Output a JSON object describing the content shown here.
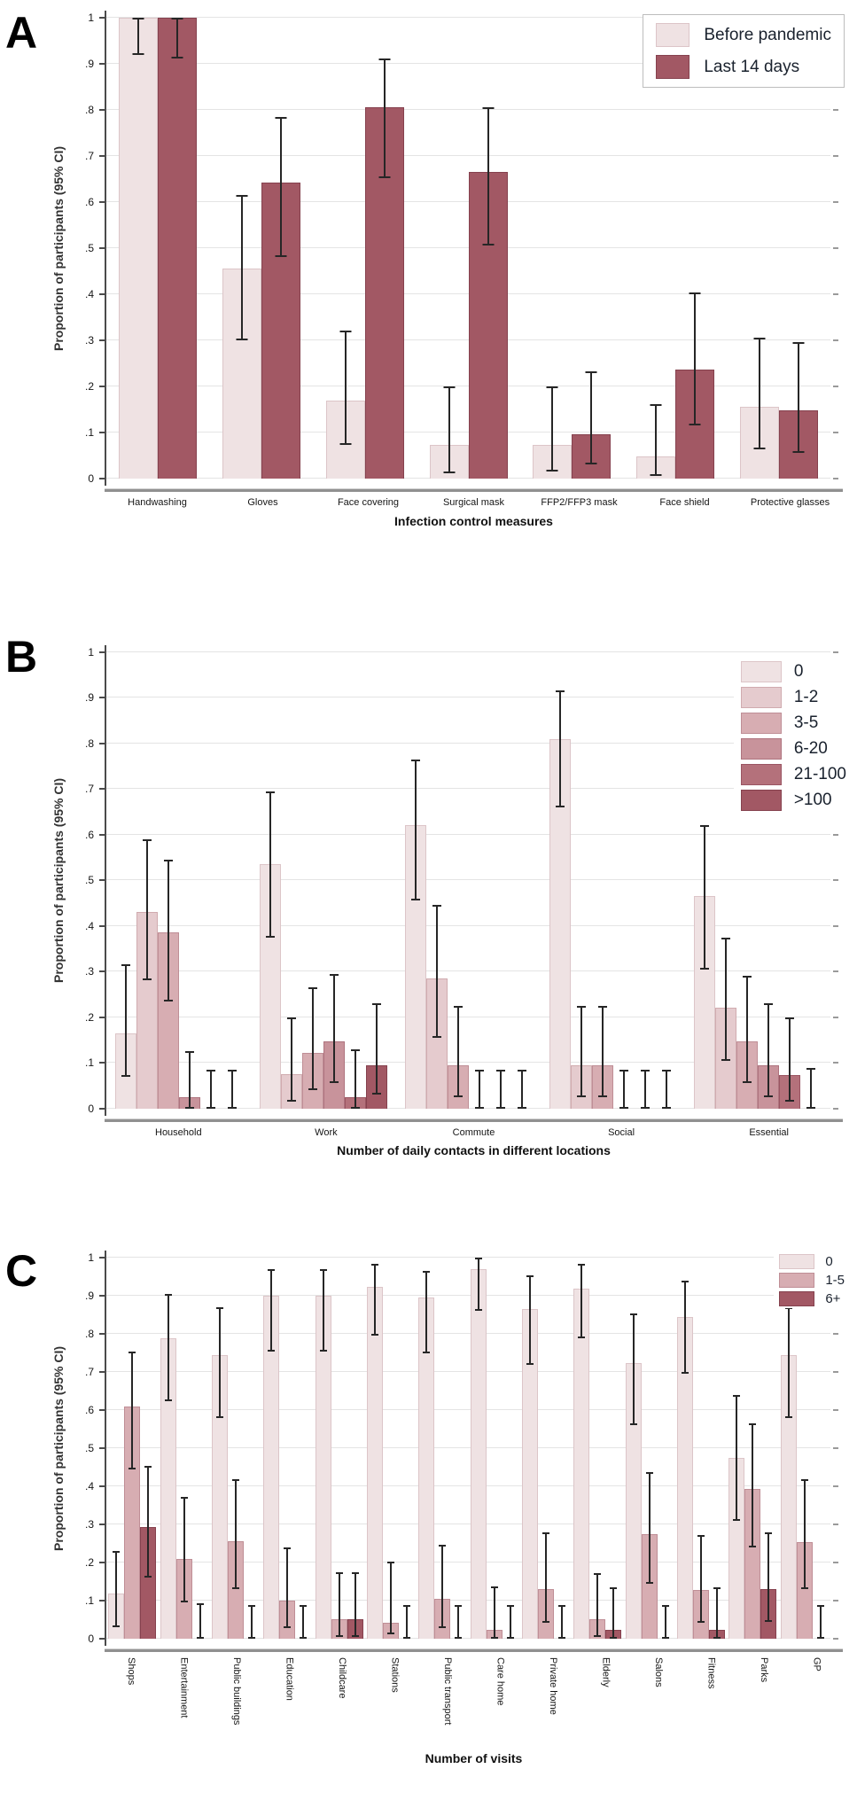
{
  "figure": {
    "panels": [
      "A",
      "B",
      "C"
    ],
    "error_bar_color": "#262626",
    "grid_color": "#e4e4e4",
    "background": "#ffffff"
  },
  "chart_data": [
    {
      "type": "bar",
      "panel": "A",
      "title": "",
      "xlabel": "Infection control measures",
      "ylabel": "Proportion of participants (95% CI)",
      "ylim": [
        0,
        1
      ],
      "ytick_labels": [
        "0",
        ".1",
        ".2",
        ".3",
        ".4",
        ".5",
        ".6",
        ".7",
        ".8",
        ".9",
        "1"
      ],
      "grid": true,
      "legend_position": "top-right",
      "categories": [
        "Handwashing",
        "Gloves",
        "Face covering",
        "Surgical mask",
        "FFP2/FFP3 mask",
        "Face shield",
        "Protective glasses"
      ],
      "series": [
        {
          "name": "Before pandemic",
          "color": "#efe2e3",
          "border": "#dcc5c8",
          "values": [
            1.0,
            0.455,
            0.17,
            0.073,
            0.073,
            0.048,
            0.155
          ],
          "ci_low": [
            0.92,
            0.3,
            0.073,
            0.012,
            0.015,
            0.005,
            0.063
          ],
          "ci_high": [
            1.0,
            0.615,
            0.322,
            0.2,
            0.2,
            0.162,
            0.305
          ]
        },
        {
          "name": "Last 14 days",
          "color": "#a25864",
          "border": "#85414e",
          "values": [
            1.0,
            0.643,
            0.805,
            0.665,
            0.097,
            0.237,
            0.148
          ],
          "ci_low": [
            0.912,
            0.48,
            0.652,
            0.505,
            0.03,
            0.115,
            0.055
          ],
          "ci_high": [
            1.0,
            0.785,
            0.912,
            0.805,
            0.232,
            0.403,
            0.297
          ]
        }
      ]
    },
    {
      "type": "bar",
      "panel": "B",
      "title": "",
      "xlabel": "Number of daily contacts in different locations",
      "ylabel": "Proportion of participants (95% CI)",
      "ylim": [
        0,
        1
      ],
      "ytick_labels": [
        "0",
        ".1",
        ".2",
        ".3",
        ".4",
        ".5",
        ".6",
        ".7",
        ".8",
        ".9",
        "1"
      ],
      "grid": true,
      "legend_position": "top-right",
      "categories": [
        "Household",
        "Work",
        "Commute",
        "Social",
        "Essential"
      ],
      "series": [
        {
          "name": "0",
          "color": "#efe2e3",
          "border": "#dcc5c8",
          "values": [
            0.165,
            0.535,
            0.62,
            0.81,
            0.465
          ],
          "ci_low": [
            0.07,
            0.375,
            0.455,
            0.66,
            0.305
          ],
          "ci_high": [
            0.315,
            0.695,
            0.765,
            0.915,
            0.62
          ]
        },
        {
          "name": "1-2",
          "color": "#e5cbce",
          "border": "#d0abaf",
          "values": [
            0.43,
            0.075,
            0.285,
            0.095,
            0.22
          ],
          "ci_low": [
            0.28,
            0.015,
            0.155,
            0.025,
            0.105
          ],
          "ci_high": [
            0.59,
            0.2,
            0.445,
            0.225,
            0.375
          ]
        },
        {
          "name": "3-5",
          "color": "#d7adb2",
          "border": "#bf8e96",
          "values": [
            0.385,
            0.122,
            0.095,
            0.095,
            0.147
          ],
          "ci_low": [
            0.235,
            0.04,
            0.025,
            0.025,
            0.055
          ],
          "ci_high": [
            0.545,
            0.265,
            0.225,
            0.225,
            0.29
          ]
        },
        {
          "name": "6-20",
          "color": "#c8939b",
          "border": "#ae737e",
          "values": [
            0.024,
            0.147,
            0.0,
            0.0,
            0.095
          ],
          "ci_low": [
            0.0,
            0.055,
            0.0,
            0.0,
            0.025
          ],
          "ci_high": [
            0.125,
            0.295,
            0.085,
            0.085,
            0.23
          ]
        },
        {
          "name": "21-100",
          "color": "#b4717b",
          "border": "#9a5562",
          "values": [
            0.0,
            0.024,
            0.0,
            0.0,
            0.073
          ],
          "ci_low": [
            0.0,
            0.0,
            0.0,
            0.0,
            0.015
          ],
          "ci_high": [
            0.085,
            0.13,
            0.085,
            0.085,
            0.2
          ]
        },
        {
          "name": ">100",
          "color": "#a25864",
          "border": "#85414e",
          "values": [
            0.0,
            0.095,
            0.0,
            0.0,
            0.0
          ],
          "ci_low": [
            0.0,
            0.03,
            0.0,
            0.0,
            0.0
          ],
          "ci_high": [
            0.085,
            0.23,
            0.085,
            0.085,
            0.088
          ]
        }
      ]
    },
    {
      "type": "bar",
      "panel": "C",
      "title": "",
      "xlabel": "Number of visits",
      "ylabel": "Proportion of participants (95% CI)",
      "ylim": [
        0,
        1
      ],
      "ytick_labels": [
        "0",
        ".1",
        ".2",
        ".3",
        ".4",
        ".5",
        ".6",
        ".7",
        ".8",
        ".9",
        "1"
      ],
      "grid": true,
      "legend_position": "top-right",
      "categories": [
        "Shops",
        "Entertainment",
        "Public buildings",
        "Education",
        "Childcare",
        "Stations",
        "Public transport",
        "Care home",
        "Private home",
        "Elderly",
        "Salons",
        "Fitness",
        "Parks",
        "GP"
      ],
      "series": [
        {
          "name": "0",
          "color": "#efe2e3",
          "border": "#dcc5c8",
          "values": [
            0.12,
            0.79,
            0.745,
            0.9,
            0.9,
            0.925,
            0.895,
            0.97,
            0.865,
            0.92,
            0.725,
            0.845,
            0.475,
            0.745
          ],
          "ci_low": [
            0.03,
            0.625,
            0.58,
            0.755,
            0.755,
            0.795,
            0.75,
            0.86,
            0.72,
            0.79,
            0.56,
            0.695,
            0.31,
            0.58
          ],
          "ci_high": [
            0.23,
            0.905,
            0.87,
            0.97,
            0.97,
            0.985,
            0.965,
            1.0,
            0.955,
            0.985,
            0.855,
            0.94,
            0.64,
            0.87
          ]
        },
        {
          "name": "1-5",
          "color": "#d7adb2",
          "border": "#bf8e96",
          "values": [
            0.61,
            0.21,
            0.257,
            0.1,
            0.052,
            0.042,
            0.105,
            0.025,
            0.13,
            0.052,
            0.275,
            0.128,
            0.393,
            0.255
          ],
          "ci_low": [
            0.445,
            0.095,
            0.13,
            0.028,
            0.005,
            0.012,
            0.028,
            0.0,
            0.042,
            0.005,
            0.145,
            0.042,
            0.24,
            0.13
          ],
          "ci_high": [
            0.755,
            0.373,
            0.42,
            0.24,
            0.175,
            0.203,
            0.247,
            0.138,
            0.28,
            0.172,
            0.438,
            0.273,
            0.565,
            0.42
          ]
        },
        {
          "name": "6+",
          "color": "#a25864",
          "border": "#85414e",
          "values": [
            0.293,
            0.0,
            0.0,
            0.0,
            0.052,
            0.0,
            0.0,
            0.0,
            0.0,
            0.025,
            0.0,
            0.025,
            0.13,
            0.0
          ],
          "ci_low": [
            0.16,
            0.0,
            0.0,
            0.0,
            0.005,
            0.0,
            0.0,
            0.0,
            0.0,
            0.0,
            0.0,
            0.0,
            0.045,
            0.0
          ],
          "ci_high": [
            0.455,
            0.093,
            0.09,
            0.09,
            0.175,
            0.088,
            0.09,
            0.09,
            0.09,
            0.135,
            0.088,
            0.135,
            0.28,
            0.09
          ]
        }
      ]
    }
  ]
}
